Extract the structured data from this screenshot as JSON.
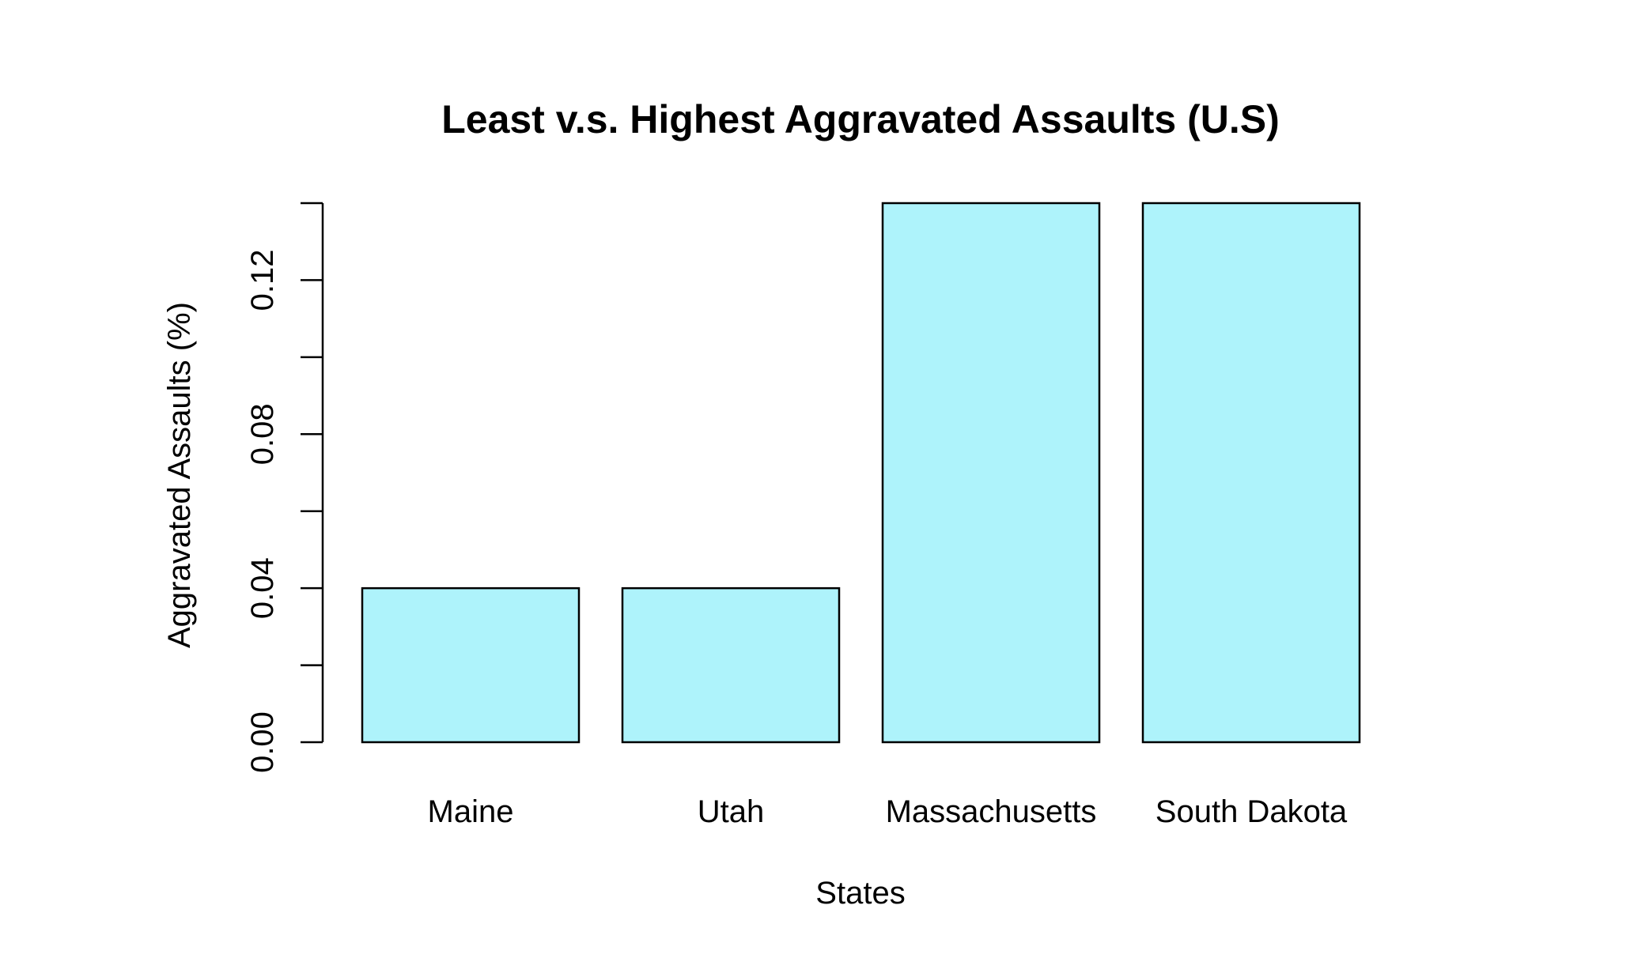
{
  "chart_data": {
    "type": "bar",
    "title": "Least v.s. Highest Aggravated Assaults (U.S)",
    "xlabel": "States",
    "ylabel": "Aggravated Assaults (%)",
    "categories": [
      "Maine",
      "Utah",
      "Massachusetts",
      "South Dakota"
    ],
    "values": [
      0.04,
      0.04,
      0.14,
      0.14
    ],
    "ylim": [
      0,
      0.14
    ],
    "yticks": [
      0.0,
      0.02,
      0.04,
      0.06,
      0.08,
      0.1,
      0.12,
      0.14
    ],
    "ytick_labels": [
      "0.00",
      "",
      "0.04",
      "",
      "0.08",
      "",
      "0.12",
      ""
    ],
    "bar_color": "#aef3fb",
    "grid": false,
    "legend": "none"
  }
}
